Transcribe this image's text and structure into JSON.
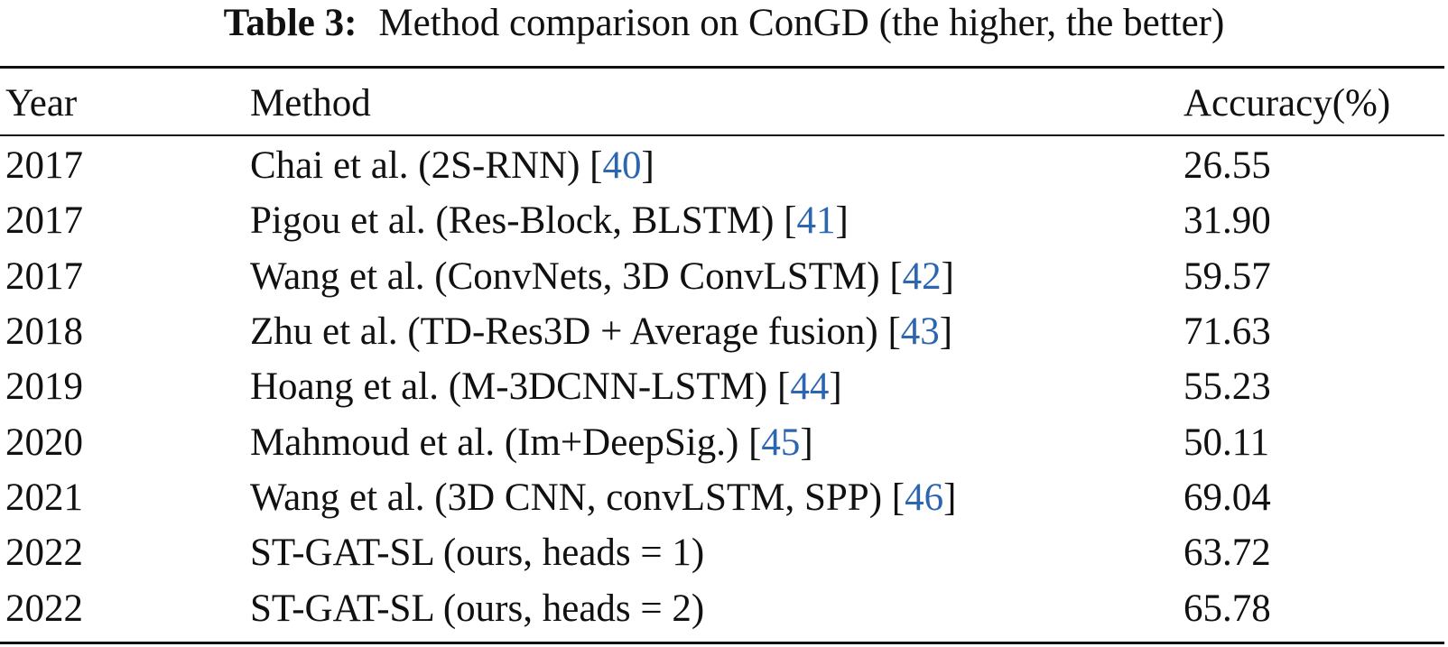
{
  "caption": {
    "label": "Table 3:",
    "text": "Method comparison on ConGD (the higher, the better)"
  },
  "table": {
    "columns": [
      "Year",
      "Method",
      "Accuracy(%)"
    ],
    "rows": [
      {
        "year": "2017",
        "method": "Chai et al. (2S-RNN) [",
        "ref": "40",
        "close": "]",
        "accuracy": "26.55"
      },
      {
        "year": "2017",
        "method": "Pigou et al. (Res-Block, BLSTM) [",
        "ref": "41",
        "close": "]",
        "accuracy": "31.90"
      },
      {
        "year": "2017",
        "method": "Wang et al. (ConvNets, 3D ConvLSTM) [",
        "ref": "42",
        "close": "]",
        "accuracy": "59.57"
      },
      {
        "year": "2018",
        "method": "Zhu et al. (TD-Res3D + Average fusion) [",
        "ref": "43",
        "close": "]",
        "accuracy": "71.63"
      },
      {
        "year": "2019",
        "method": "Hoang et al. (M-3DCNN-LSTM) [",
        "ref": "44",
        "close": "]",
        "accuracy": "55.23"
      },
      {
        "year": "2020",
        "method": "Mahmoud et al. (Im+DeepSig.) [",
        "ref": "45",
        "close": "]",
        "accuracy": "50.11"
      },
      {
        "year": "2021",
        "method": "Wang et al. (3D CNN, convLSTM, SPP) [",
        "ref": "46",
        "close": "]",
        "accuracy": "69.04"
      },
      {
        "year": "2022",
        "method": "ST-GAT-SL (ours, heads = 1)",
        "ref": "",
        "close": "",
        "accuracy": "63.72"
      },
      {
        "year": "2022",
        "method": "ST-GAT-SL (ours, heads = 2)",
        "ref": "",
        "close": "",
        "accuracy": "65.78"
      }
    ]
  },
  "colors": {
    "reference_link": "#2c66b0",
    "text": "#111111"
  }
}
